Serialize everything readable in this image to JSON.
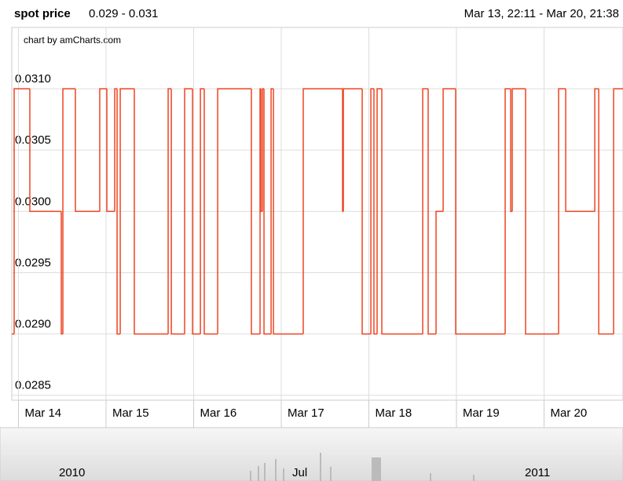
{
  "chart_data": {
    "type": "line",
    "step": true,
    "title": "spot price",
    "subtitle": "0.029 - 0.031",
    "range_label": "Mar 13, 22:11 - Mar 20, 21:38",
    "credit": "chart by amCharts.com",
    "navigator_labels": [
      "2010",
      "Jul",
      "2011"
    ],
    "color": "#ee4422",
    "grid": true,
    "xlim": [
      13.924,
      20.901
    ],
    "xticks": [
      {
        "value": 14,
        "label": "Mar 14"
      },
      {
        "value": 15,
        "label": "Mar 15"
      },
      {
        "value": 16,
        "label": "Mar 16"
      },
      {
        "value": 17,
        "label": "Mar 17"
      },
      {
        "value": 18,
        "label": "Mar 18"
      },
      {
        "value": 19,
        "label": "Mar 19"
      },
      {
        "value": 20,
        "label": "Mar 20"
      }
    ],
    "ylim": [
      0.02846,
      0.0315
    ],
    "yticks": [
      {
        "value": 0.031,
        "label": "0.0310"
      },
      0.0305,
      {
        "value": 0.03,
        "label": "0.0300"
      },
      0.0295,
      {
        "value": 0.029,
        "label": "0.0290"
      },
      0.0285
    ],
    "x": [
      13.924,
      13.951,
      14.13,
      14.489,
      14.507,
      14.65,
      14.928,
      15.009,
      15.099,
      15.126,
      15.162,
      15.323,
      15.709,
      15.745,
      15.897,
      15.987,
      16.077,
      16.121,
      16.274,
      16.659,
      16.758,
      16.767,
      16.785,
      16.803,
      16.884,
      16.911,
      17.251,
      17.7,
      17.709,
      17.924,
      18.023,
      18.058,
      18.094,
      18.148,
      18.615,
      18.677,
      18.767,
      18.848,
      18.991,
      19.556,
      19.619,
      19.637,
      19.789,
      20.166,
      20.247,
      20.579,
      20.624,
      20.794,
      20.901
    ],
    "values": [
      0.029,
      0.031,
      0.03,
      0.029,
      0.031,
      0.03,
      0.031,
      0.03,
      0.031,
      0.029,
      0.031,
      0.029,
      0.031,
      0.029,
      0.031,
      0.029,
      0.031,
      0.029,
      0.031,
      0.029,
      0.031,
      0.03,
      0.031,
      0.029,
      0.031,
      0.029,
      0.031,
      0.03,
      0.031,
      0.029,
      0.031,
      0.029,
      0.031,
      0.029,
      0.031,
      0.029,
      0.03,
      0.031,
      0.029,
      0.031,
      0.03,
      0.031,
      0.029,
      0.031,
      0.03,
      0.031,
      0.029,
      0.031,
      0.031
    ]
  }
}
